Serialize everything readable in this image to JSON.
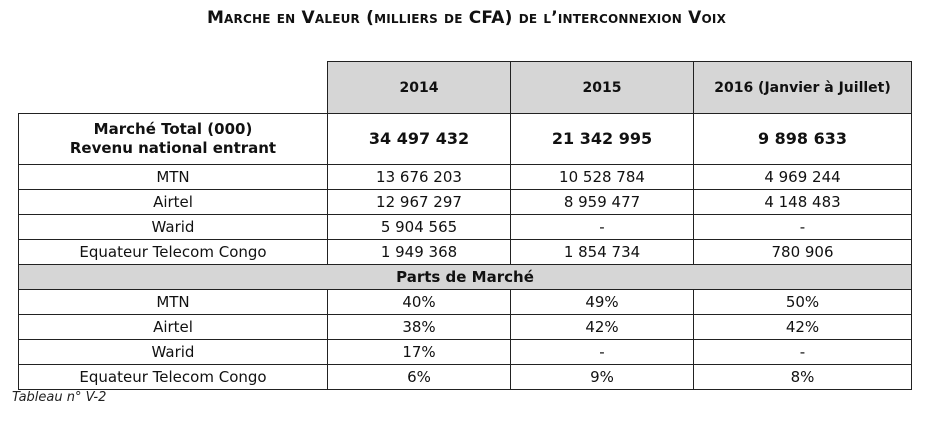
{
  "title": "Marche en Valeur (milliers de CFA) de l’interconnexion Voix",
  "columns": [
    "2014",
    "2015",
    "2016 (Janvier à Juillet)"
  ],
  "total": {
    "label_line1": "Marché Total (000)",
    "label_line2": "Revenu national entrant",
    "values": [
      "34 497 432",
      "21 342 995",
      "9 898 633"
    ]
  },
  "revenue_rows": [
    {
      "label": "MTN",
      "values": [
        "13 676 203",
        "10 528 784",
        "4 969 244"
      ]
    },
    {
      "label": "Airtel",
      "values": [
        "12 967 297",
        "8 959 477",
        "4 148 483"
      ]
    },
    {
      "label": "Warid",
      "values": [
        "5 904 565",
        "-",
        "-"
      ]
    },
    {
      "label": "Equateur Telecom Congo",
      "values": [
        "1 949 368",
        "1 854 734",
        "780 906"
      ]
    }
  ],
  "section_title": "Parts de Marché",
  "share_rows": [
    {
      "label": "MTN",
      "values": [
        "40%",
        "49%",
        "50%"
      ]
    },
    {
      "label": "Airtel",
      "values": [
        "38%",
        "42%",
        "42%"
      ]
    },
    {
      "label": "Warid",
      "values": [
        "17%",
        "-",
        "-"
      ]
    },
    {
      "label": "Equateur Telecom Congo",
      "values": [
        "6%",
        "9%",
        "8%"
      ]
    }
  ],
  "caption": "Tableau n° V-2"
}
